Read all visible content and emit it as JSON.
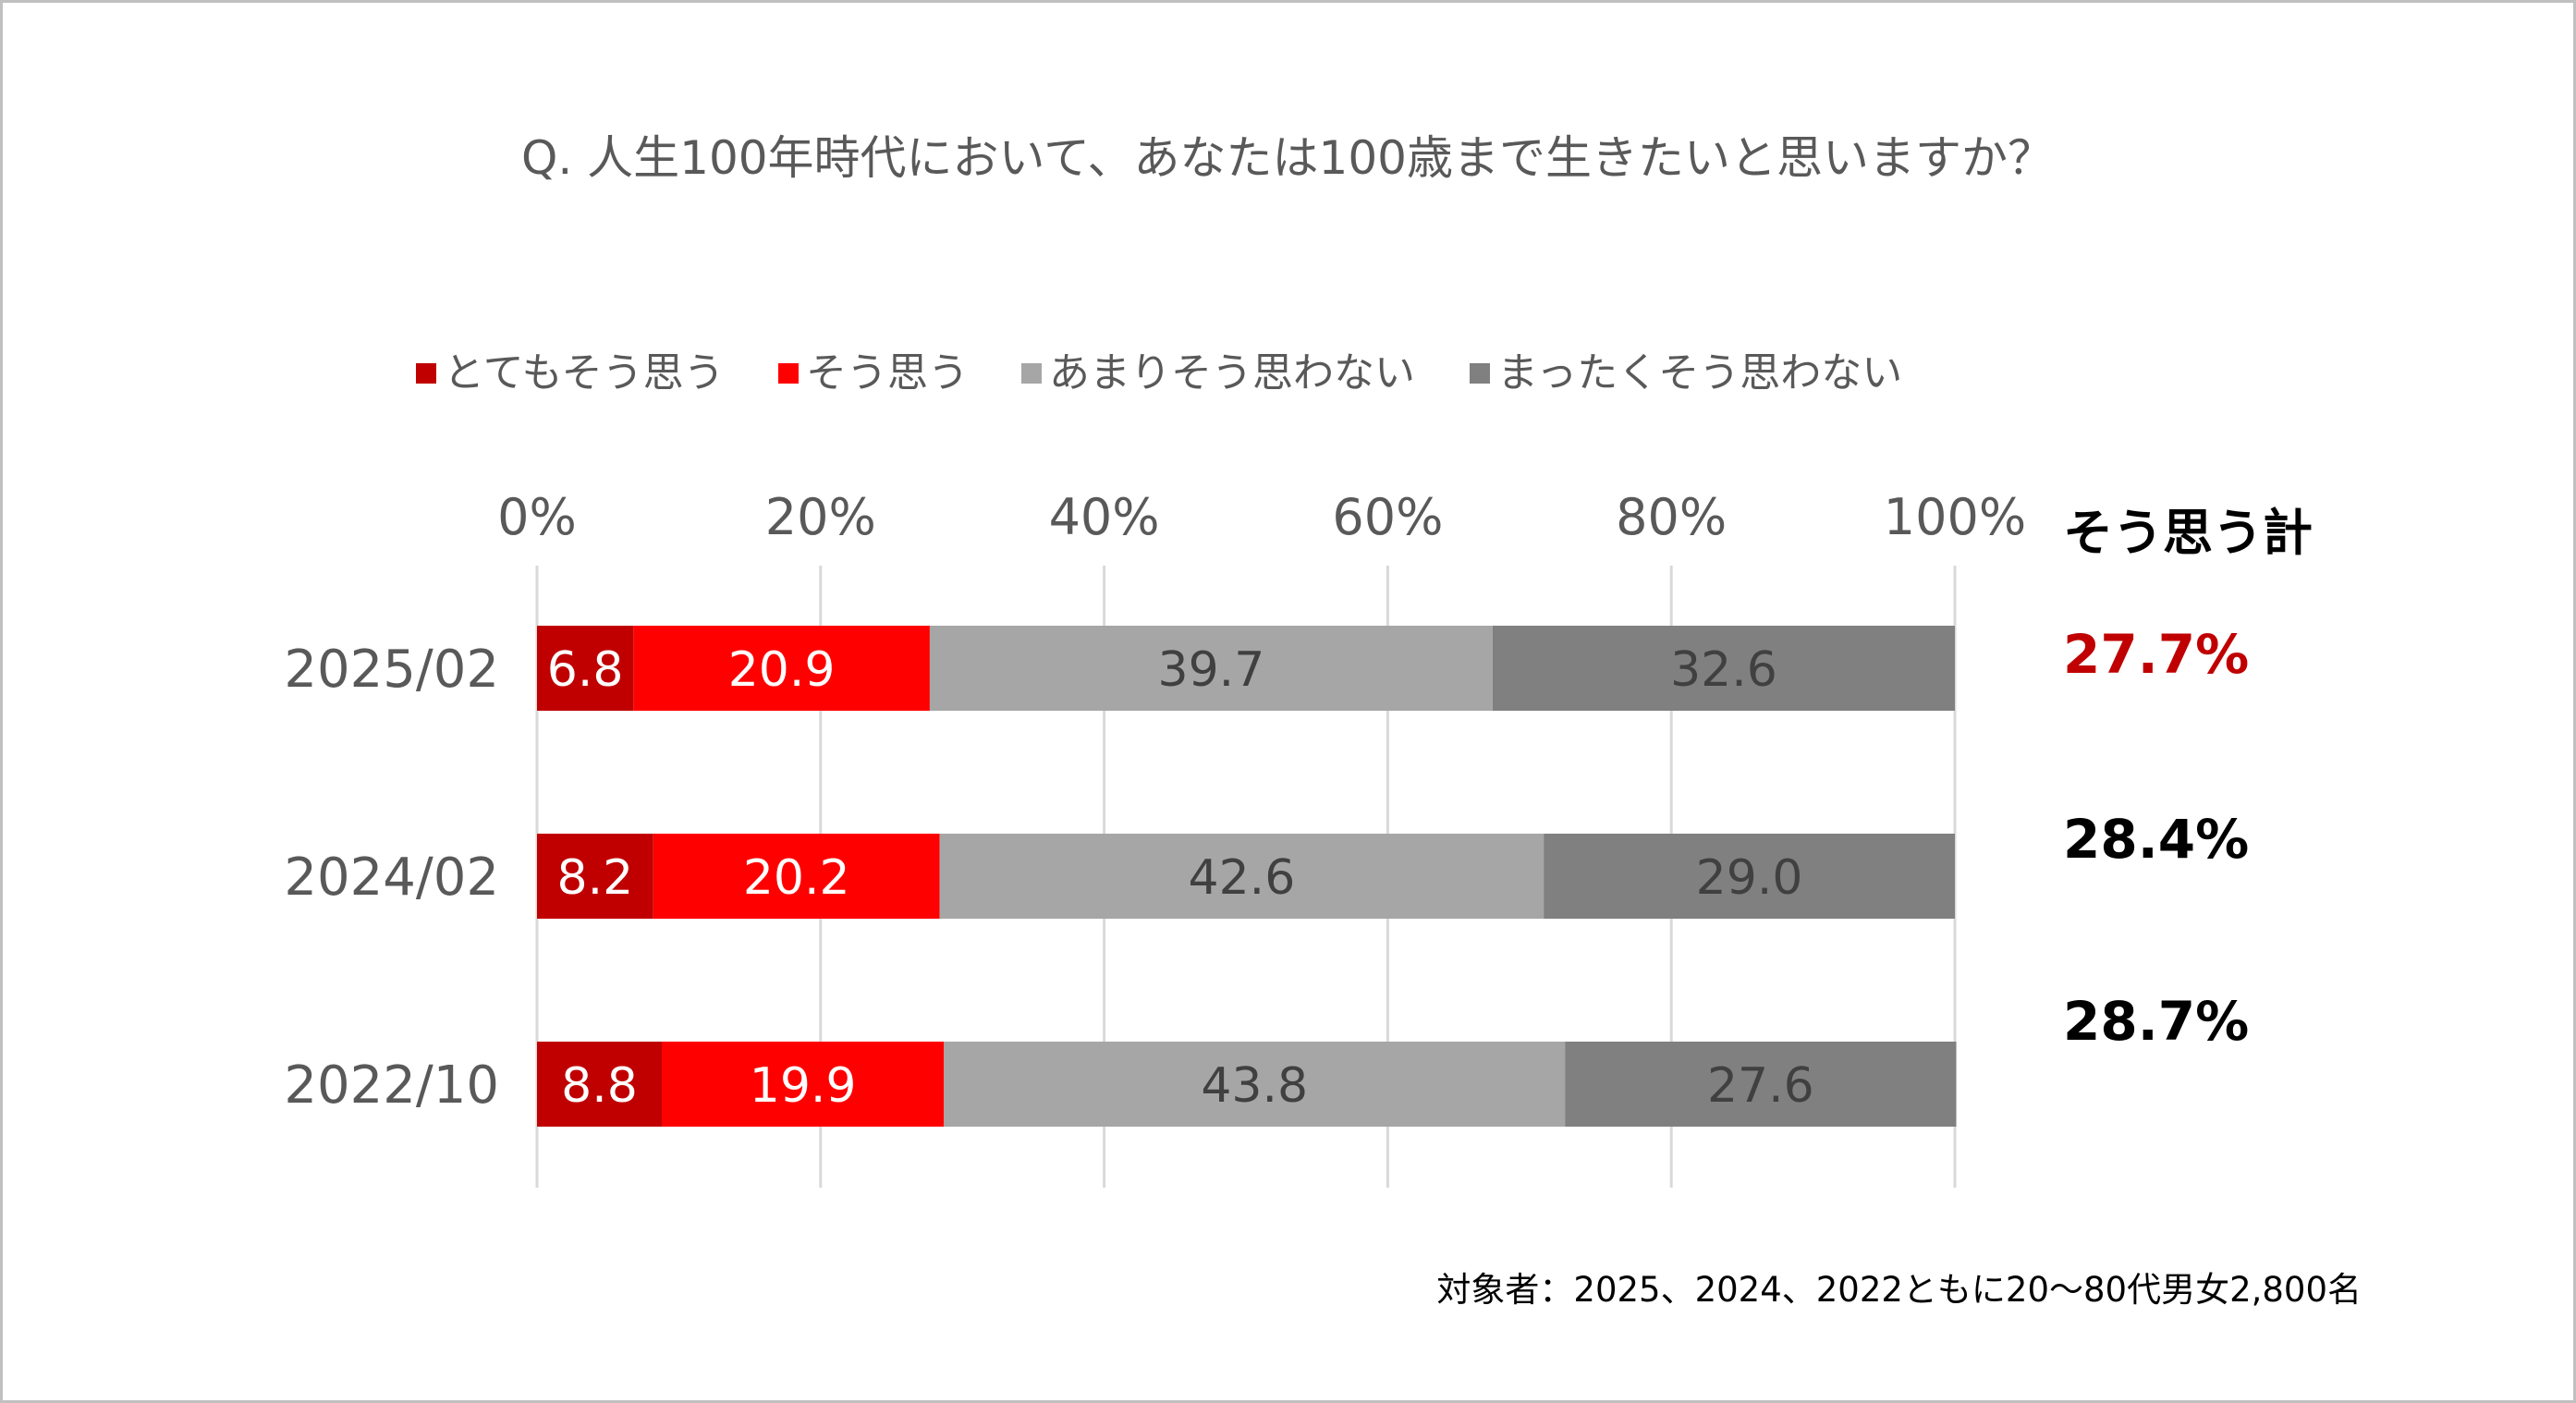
{
  "chart_data": {
    "type": "bar",
    "orientation": "horizontal",
    "stacked": true,
    "title": "Q. 人生100年時代において、あなたは100歳まで生きたいと思いますか？",
    "categories": [
      "2025/02",
      "2024/02",
      "2022/10"
    ],
    "series": [
      {
        "name": "とてもそう思う",
        "color": "#c00000",
        "values": [
          6.8,
          8.2,
          8.8
        ]
      },
      {
        "name": "そう思う",
        "color": "#ff0000",
        "values": [
          20.9,
          20.2,
          19.9
        ]
      },
      {
        "name": "あまりそう思わない",
        "color": "#a6a6a6",
        "values": [
          39.7,
          42.6,
          43.8
        ]
      },
      {
        "name": "まったくそう思わない",
        "color": "#808080",
        "values": [
          32.6,
          29.0,
          27.6
        ]
      }
    ],
    "xlim": [
      0,
      100
    ],
    "xticks": [
      "0%",
      "20%",
      "40%",
      "60%",
      "80%",
      "100%"
    ],
    "grid": true,
    "legend_position": "top",
    "totals": {
      "header": "そう思う計",
      "values": [
        "27.7%",
        "28.4%",
        "28.7%"
      ],
      "colors": [
        "#c00000",
        "#000000",
        "#000000"
      ]
    },
    "note": "対象者：2025、2024、2022ともに20～80代男女2,800名"
  }
}
